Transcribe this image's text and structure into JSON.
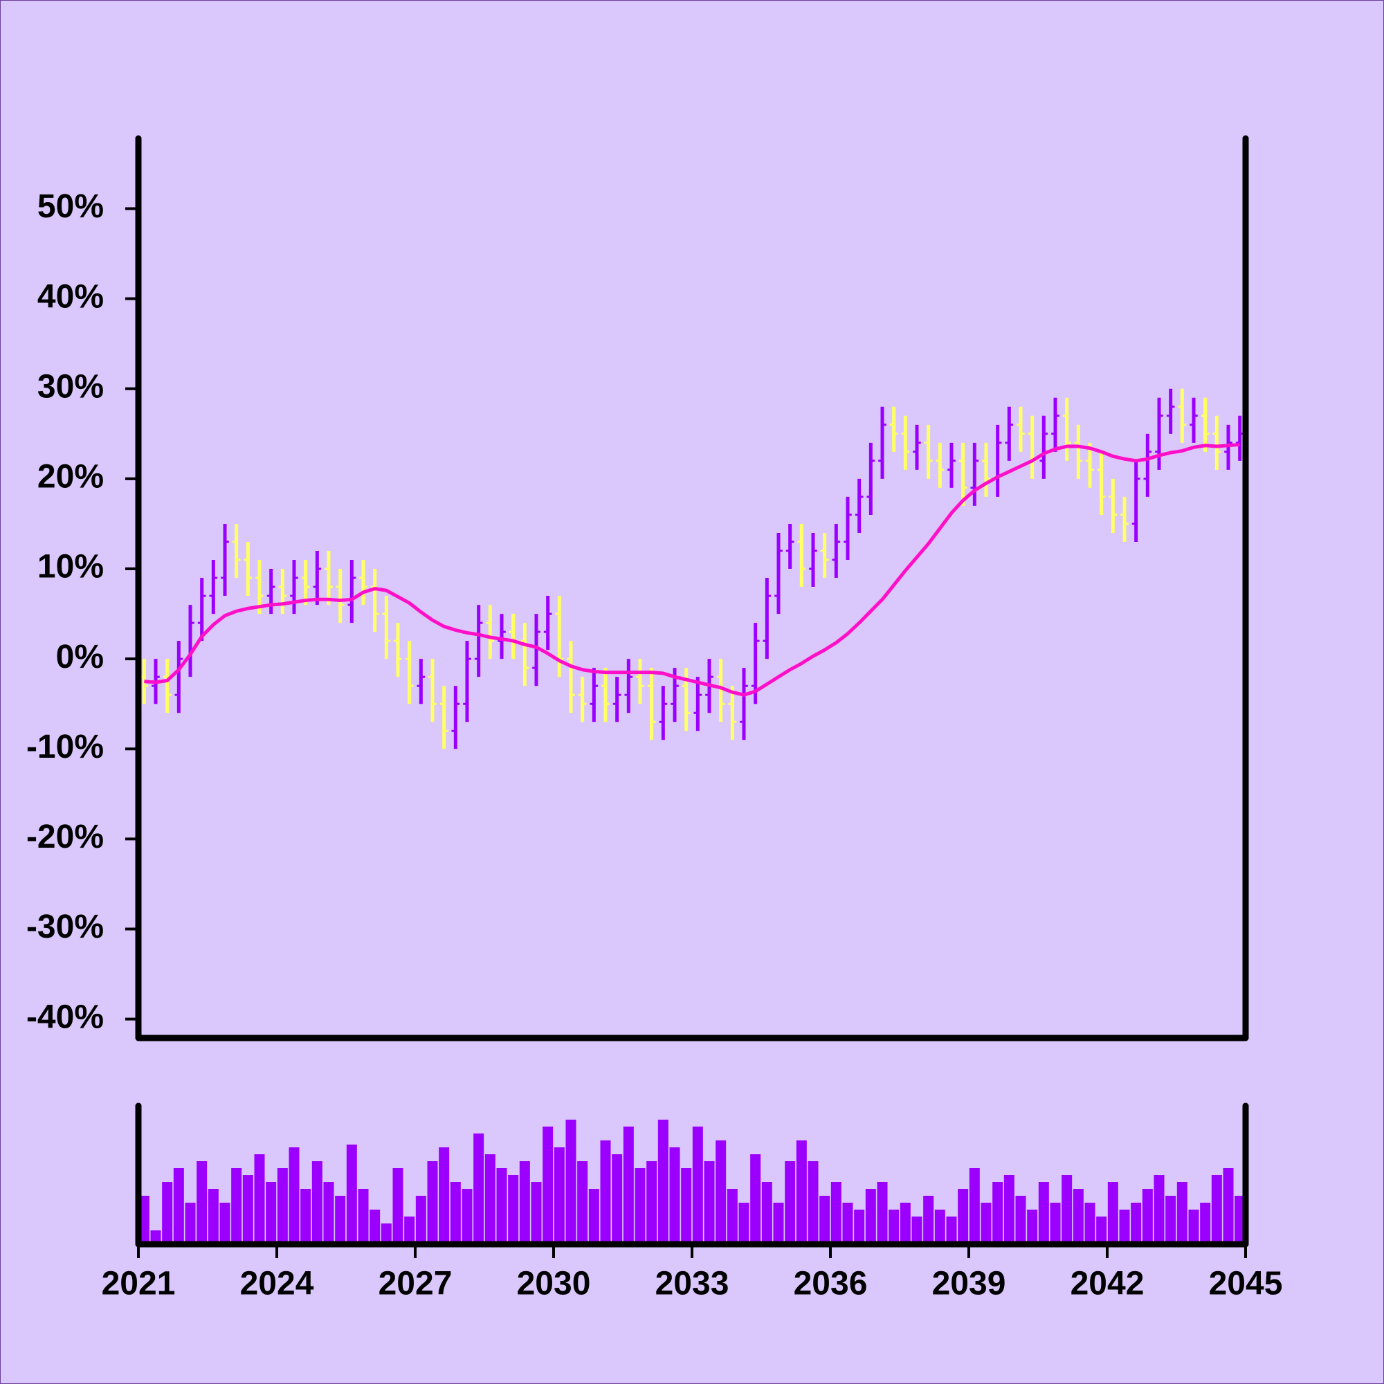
{
  "chart_data": {
    "type": "ohlc",
    "x": [
      2021.125,
      2021.375,
      2021.625,
      2021.875,
      2022.125,
      2022.375,
      2022.625,
      2022.875,
      2023.125,
      2023.375,
      2023.625,
      2023.875,
      2024.125,
      2024.375,
      2024.625,
      2024.875,
      2025.125,
      2025.375,
      2025.625,
      2025.875,
      2026.125,
      2026.375,
      2026.625,
      2026.875,
      2027.125,
      2027.375,
      2027.625,
      2027.875,
      2028.125,
      2028.375,
      2028.625,
      2028.875,
      2029.125,
      2029.375,
      2029.625,
      2029.875,
      2030.125,
      2030.375,
      2030.625,
      2030.875,
      2031.125,
      2031.375,
      2031.625,
      2031.875,
      2032.125,
      2032.375,
      2032.625,
      2032.875,
      2033.125,
      2033.375,
      2033.625,
      2033.875,
      2034.125,
      2034.375,
      2034.625,
      2034.875,
      2035.125,
      2035.375,
      2035.625,
      2035.875,
      2036.125,
      2036.375,
      2036.625,
      2036.875,
      2037.125,
      2037.375,
      2037.625,
      2037.875,
      2038.125,
      2038.375,
      2038.625,
      2038.875,
      2039.125,
      2039.375,
      2039.625,
      2039.875,
      2040.125,
      2040.375,
      2040.625,
      2040.875,
      2041.125,
      2041.375,
      2041.625,
      2041.875,
      2042.125,
      2042.375,
      2042.625,
      2042.875,
      2043.125,
      2043.375,
      2043.625,
      2043.875,
      2044.125,
      2044.375,
      2044.625,
      2044.875
    ],
    "open": [
      -2,
      -3,
      -2,
      -4,
      0,
      4,
      7,
      9,
      13,
      11,
      9,
      7,
      8,
      7,
      9,
      8,
      10,
      8,
      6,
      9,
      8,
      5,
      2,
      0,
      -3,
      -2,
      -5,
      -8,
      -5,
      0,
      4,
      2,
      3,
      2,
      -1,
      3,
      5,
      0,
      -4,
      -5,
      -3,
      -5,
      -4,
      -2,
      -3,
      -7,
      -5,
      -3,
      -6,
      -4,
      -2,
      -5,
      -7,
      -3,
      2,
      7,
      12,
      13,
      10,
      12,
      11,
      13,
      16,
      18,
      22,
      26,
      25,
      23,
      24,
      22,
      21,
      22,
      19,
      22,
      20,
      24,
      26,
      25,
      22,
      25,
      27,
      24,
      22,
      21,
      18,
      16,
      15,
      20,
      23,
      27,
      28,
      26,
      27,
      25,
      23,
      24
    ],
    "high": [
      0,
      0,
      0,
      2,
      6,
      9,
      11,
      15,
      15,
      13,
      11,
      10,
      10,
      11,
      11,
      12,
      12,
      10,
      11,
      11,
      10,
      7,
      4,
      2,
      0,
      0,
      -3,
      -3,
      2,
      6,
      6,
      5,
      5,
      4,
      5,
      7,
      7,
      2,
      -2,
      -1,
      -1,
      -2,
      0,
      0,
      -1,
      -3,
      -1,
      -1,
      -2,
      0,
      0,
      -3,
      -1,
      4,
      9,
      14,
      15,
      15,
      14,
      14,
      15,
      18,
      20,
      24,
      28,
      28,
      27,
      26,
      26,
      24,
      24,
      24,
      24,
      24,
      26,
      28,
      28,
      27,
      27,
      29,
      29,
      26,
      24,
      23,
      20,
      18,
      22,
      25,
      29,
      30,
      30,
      29,
      29,
      27,
      26,
      27
    ],
    "low": [
      -5,
      -5,
      -6,
      -6,
      -2,
      2,
      5,
      7,
      9,
      7,
      5,
      5,
      5,
      5,
      6,
      6,
      6,
      4,
      4,
      6,
      3,
      0,
      -2,
      -5,
      -5,
      -7,
      -10,
      -10,
      -7,
      -2,
      0,
      0,
      0,
      -3,
      -3,
      1,
      -2,
      -6,
      -7,
      -7,
      -7,
      -7,
      -6,
      -5,
      -9,
      -9,
      -7,
      -8,
      -8,
      -6,
      -7,
      -9,
      -9,
      -5,
      0,
      5,
      10,
      8,
      8,
      9,
      9,
      11,
      14,
      16,
      20,
      23,
      21,
      21,
      20,
      19,
      19,
      17,
      17,
      18,
      18,
      22,
      23,
      20,
      20,
      23,
      22,
      20,
      19,
      16,
      14,
      13,
      13,
      18,
      21,
      25,
      24,
      24,
      23,
      21,
      21,
      22
    ],
    "close": [
      -3,
      -2,
      -4,
      0,
      4,
      7,
      9,
      13,
      11,
      9,
      7,
      8,
      7,
      9,
      8,
      10,
      8,
      6,
      9,
      8,
      5,
      2,
      0,
      -3,
      -2,
      -5,
      -8,
      -5,
      0,
      4,
      2,
      3,
      2,
      -1,
      3,
      5,
      0,
      -4,
      -5,
      -3,
      -5,
      -4,
      -2,
      -3,
      -7,
      -5,
      -3,
      -6,
      -4,
      -2,
      -5,
      -7,
      -3,
      2,
      7,
      12,
      13,
      10,
      12,
      11,
      13,
      16,
      18,
      22,
      26,
      25,
      23,
      24,
      22,
      21,
      22,
      19,
      22,
      20,
      24,
      26,
      25,
      22,
      25,
      27,
      24,
      22,
      21,
      18,
      16,
      15,
      20,
      23,
      27,
      28,
      26,
      27,
      25,
      23,
      24,
      25
    ],
    "volume": [
      35,
      10,
      45,
      55,
      30,
      60,
      40,
      30,
      55,
      50,
      65,
      45,
      55,
      70,
      40,
      60,
      45,
      35,
      72,
      40,
      25,
      15,
      55,
      20,
      35,
      60,
      70,
      45,
      40,
      80,
      65,
      55,
      50,
      60,
      45,
      85,
      70,
      90,
      60,
      40,
      75,
      65,
      85,
      55,
      60,
      90,
      70,
      55,
      85,
      60,
      75,
      40,
      30,
      65,
      45,
      30,
      60,
      75,
      60,
      35,
      45,
      30,
      25,
      40,
      45,
      25,
      30,
      20,
      35,
      25,
      20,
      40,
      55,
      30,
      45,
      50,
      35,
      25,
      45,
      30,
      50,
      40,
      30,
      20,
      45,
      25,
      30,
      40,
      50,
      35,
      45,
      25,
      30,
      50,
      55,
      35
    ],
    "moving_average": [
      -2.5,
      -2.6,
      -2.4,
      -1.2,
      0.5,
      2.5,
      3.8,
      4.8,
      5.3,
      5.6,
      5.8,
      6.0,
      6.1,
      6.3,
      6.5,
      6.6,
      6.6,
      6.5,
      6.6,
      7.4,
      7.8,
      7.6,
      6.9,
      6.2,
      5.2,
      4.3,
      3.6,
      3.2,
      2.9,
      2.7,
      2.4,
      2.2,
      2.0,
      1.6,
      1.3,
      0.6,
      -0.2,
      -0.8,
      -1.2,
      -1.4,
      -1.5,
      -1.5,
      -1.5,
      -1.5,
      -1.5,
      -1.6,
      -2.0,
      -2.3,
      -2.6,
      -2.9,
      -3.2,
      -3.7,
      -4.0,
      -3.6,
      -2.8,
      -2.0,
      -1.2,
      -0.5,
      0.3,
      1.0,
      1.8,
      2.8,
      4.0,
      5.3,
      6.6,
      8.2,
      9.8,
      11.3,
      12.8,
      14.5,
      16.2,
      17.6,
      18.7,
      19.5,
      20.2,
      20.8,
      21.4,
      22.0,
      22.8,
      23.3,
      23.6,
      23.6,
      23.4,
      23.0,
      22.5,
      22.2,
      22.0,
      22.2,
      22.6,
      22.9,
      23.1,
      23.5,
      23.7,
      23.6,
      23.7,
      23.8
    ],
    "up_color": "#9b00ff",
    "down_color": "#ffff66",
    "ma_color": "#ff10c8",
    "volume_color": "#9b00ff",
    "xlim": [
      2021,
      2045
    ],
    "xticks": [
      2021,
      2024,
      2027,
      2030,
      2033,
      2036,
      2039,
      2042,
      2045
    ],
    "ylim": [
      -42.1,
      57.8
    ],
    "yticks": [
      {
        "value": -40,
        "label": "-40%"
      },
      {
        "value": -30,
        "label": "-30%"
      },
      {
        "value": -20,
        "label": "-20%"
      },
      {
        "value": -10,
        "label": "-10%"
      },
      {
        "value": 0,
        "label": "0%"
      },
      {
        "value": 10,
        "label": "10%"
      },
      {
        "value": 20,
        "label": "20%"
      },
      {
        "value": 30,
        "label": "30%"
      },
      {
        "value": 40,
        "label": "40%"
      },
      {
        "value": 50,
        "label": "50%"
      }
    ],
    "volume_ylim": [
      0,
      100
    ]
  }
}
